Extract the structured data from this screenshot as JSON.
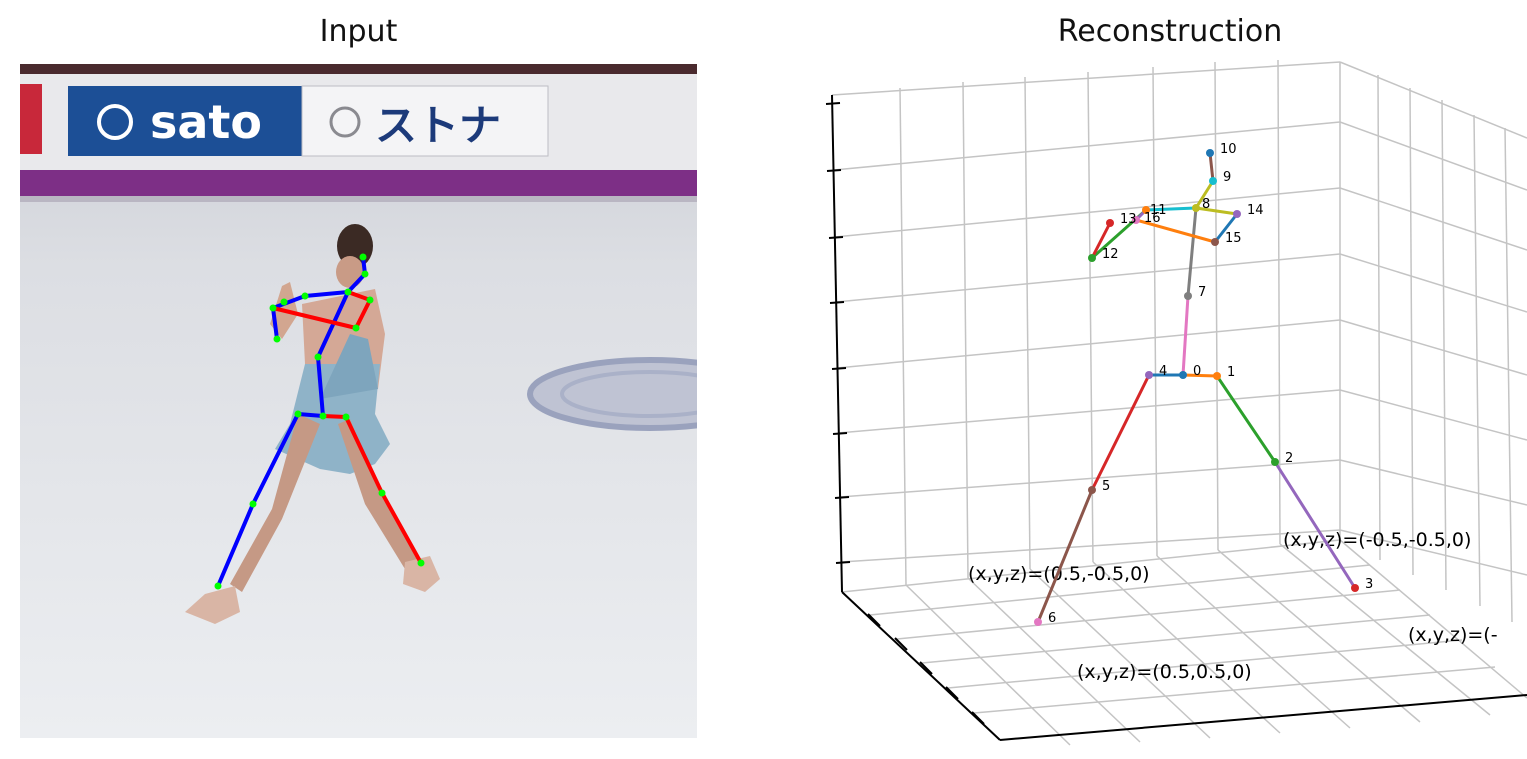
{
  "titles": {
    "left": "Input",
    "right": "Reconstruction"
  },
  "banner": {
    "brand": "sato",
    "sponsor": "ストナ"
  },
  "joint_labels": [
    "0",
    "1",
    "2",
    "3",
    "4",
    "5",
    "6",
    "7",
    "8",
    "9",
    "10",
    "11",
    "12",
    "13",
    "14",
    "15",
    "16"
  ],
  "corner_labels": {
    "a": "(x,y,z)=(0.5,-0.5,0)",
    "b": "(x,y,z)=(-0.5,-0.5,0)",
    "c": "(x,y,z)=(0.5,0.5,0)",
    "d": "(x,y,z)=(-"
  },
  "colors": {
    "skeleton_left": "#0000ff",
    "skeleton_right": "#ff0000",
    "keypoint": "#00ff00",
    "banner_blue": "#1c4f96",
    "banner_purple": "#7d2f86"
  }
}
